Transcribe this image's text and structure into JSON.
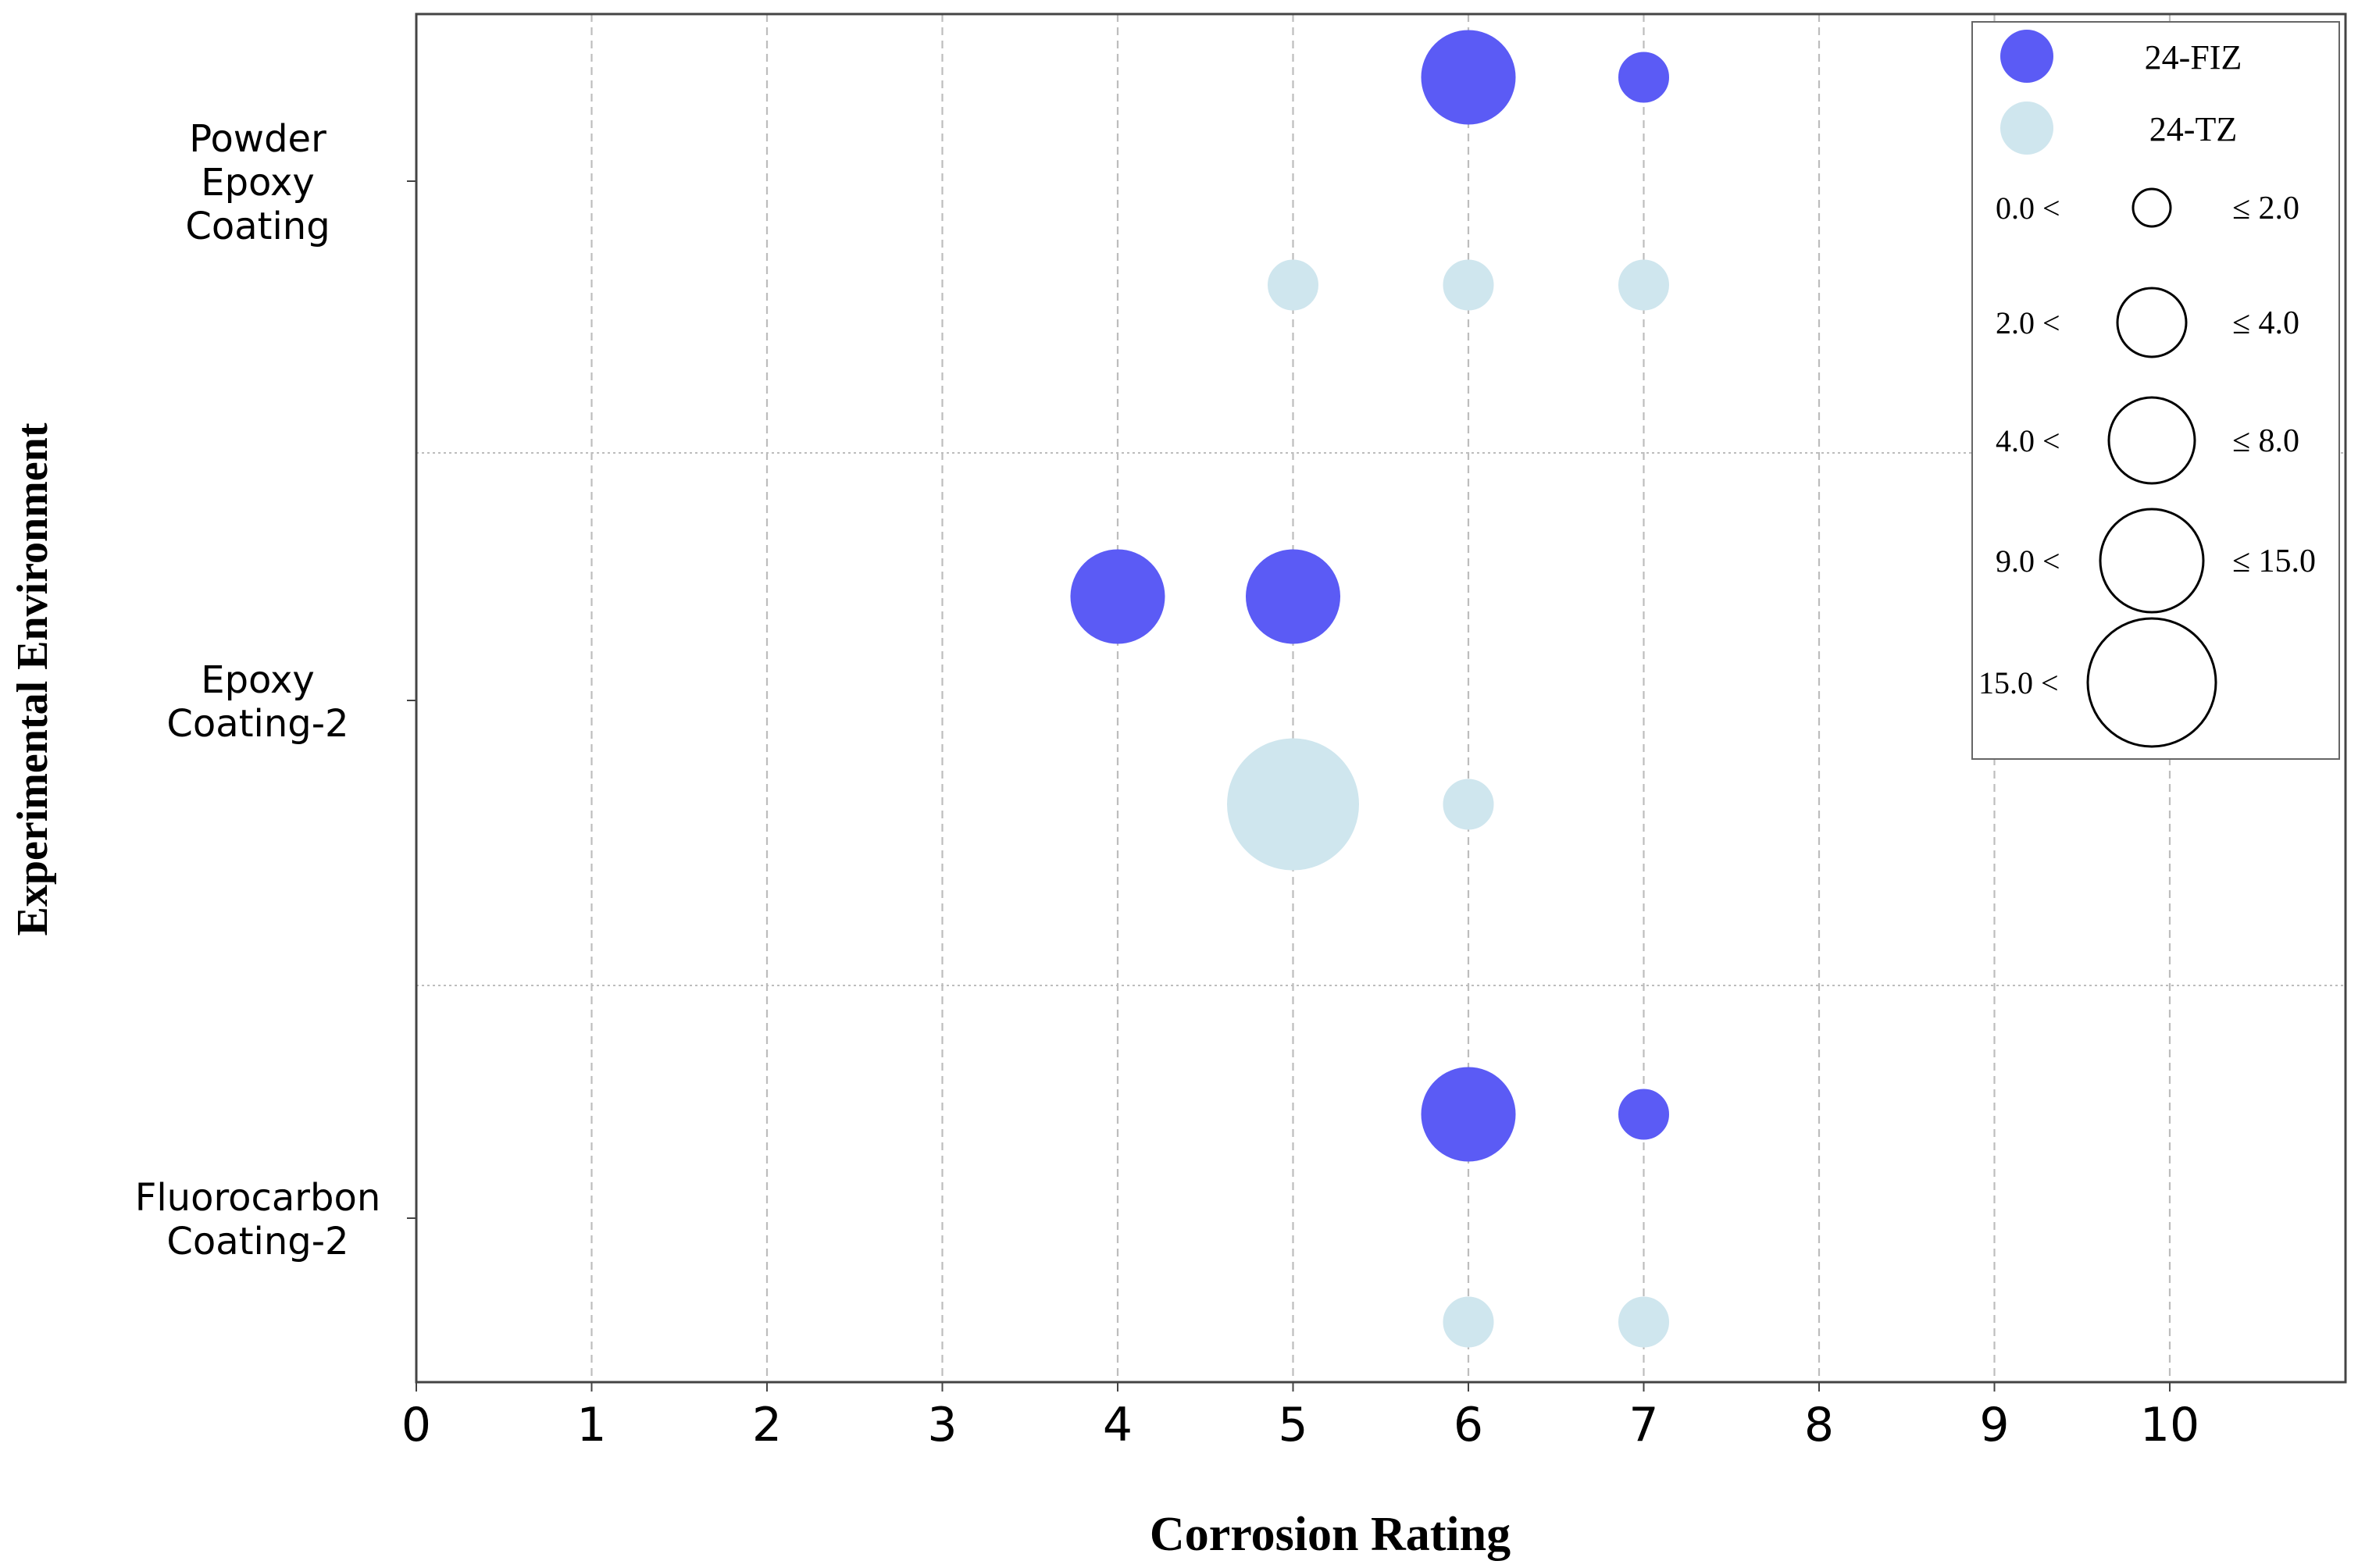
{
  "chart_data": {
    "type": "scatter",
    "xlabel": "Corrosion Rating",
    "ylabel": "Experimental Environment",
    "xlim": [
      0,
      11
    ],
    "xticks": [
      "0",
      "1",
      "2",
      "3",
      "4",
      "5",
      "6",
      "7",
      "8",
      "9",
      "10"
    ],
    "grid": "x-dashed",
    "legend_position": "top-right",
    "categories": [
      {
        "label": [
          "Powder",
          "Epoxy",
          "Coating"
        ]
      },
      {
        "label": [
          "Epoxy",
          "Coating-2"
        ]
      },
      {
        "label": [
          "Fluorocarbon",
          "Coating-2"
        ]
      }
    ],
    "series": [
      {
        "name": "24-FIZ",
        "color": "#5b5bf5",
        "points": [
          {
            "category": 0,
            "x": 6,
            "size_bin": 3
          },
          {
            "category": 0,
            "x": 7,
            "size_bin": 1
          },
          {
            "category": 1,
            "x": 4,
            "size_bin": 3
          },
          {
            "category": 1,
            "x": 5,
            "size_bin": 3
          },
          {
            "category": 2,
            "x": 6,
            "size_bin": 3
          },
          {
            "category": 2,
            "x": 7,
            "size_bin": 1
          }
        ]
      },
      {
        "name": "24-TZ",
        "color": "#cfe6ee",
        "points": [
          {
            "category": 0,
            "x": 5,
            "size_bin": 1
          },
          {
            "category": 0,
            "x": 6,
            "size_bin": 1
          },
          {
            "category": 0,
            "x": 7,
            "size_bin": 1
          },
          {
            "category": 1,
            "x": 5,
            "size_bin": 4
          },
          {
            "category": 1,
            "x": 6,
            "size_bin": 1
          },
          {
            "category": 2,
            "x": 6,
            "size_bin": 1
          },
          {
            "category": 2,
            "x": 7,
            "size_bin": 1
          }
        ]
      }
    ],
    "size_legend": [
      {
        "low": "0.0 <",
        "high": "≤ 2.0"
      },
      {
        "low": "2.0 <",
        "high": "≤ 4.0"
      },
      {
        "low": "4.0 <",
        "high": "≤ 8.0"
      },
      {
        "low": "9.0 <",
        "high": "≤ 15.0"
      },
      {
        "low": "15.0 <",
        "high": ""
      }
    ]
  }
}
